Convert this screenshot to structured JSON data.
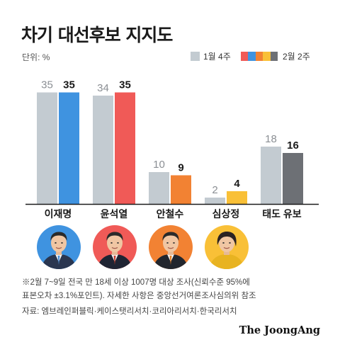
{
  "title": "차기 대선후보 지지도",
  "unit": "단위: %",
  "legend": {
    "w1_label": "1월 4주",
    "w2_label": "2월 2주"
  },
  "colors": {
    "previous_gray": "#c3cbd1",
    "lee": "#3f93e0",
    "yoon": "#f05a57",
    "ahn": "#f28233",
    "sim": "#f9c037",
    "undecided": "#6d7075",
    "label_prev": "#8b8f94",
    "label_curr": "#1a1a1a",
    "baseline": "#1a1a1a"
  },
  "chart_data": {
    "type": "bar",
    "title": "차기 대선후보 지지도",
    "unit": "%",
    "categories": [
      "이재명",
      "윤석열",
      "안철수",
      "심상정",
      "태도 유보"
    ],
    "series": [
      {
        "name": "1월 4주",
        "values": [
          35,
          34,
          10,
          2,
          18
        ]
      },
      {
        "name": "2월 2주",
        "values": [
          35,
          35,
          9,
          4,
          16
        ]
      }
    ],
    "ylim": [
      0,
      40
    ],
    "grid": false,
    "legend_position": "top-right"
  },
  "photos": [
    {
      "name": "이재명",
      "icon": "candidate-lee-photo",
      "bg": "#3f93e0",
      "suit": "#2a3650",
      "tie": "#4b8ed6"
    },
    {
      "name": "윤석열",
      "icon": "candidate-yoon-photo",
      "bg": "#f05a57",
      "suit": "#1f2433",
      "tie": "#c0392b"
    },
    {
      "name": "안철수",
      "icon": "candidate-ahn-photo",
      "bg": "#f28233",
      "suit": "#22262e",
      "tie": "#e67e22"
    },
    {
      "name": "심상정",
      "icon": "candidate-sim-photo",
      "bg": "#f9c037",
      "suit": "#e8b321",
      "tie": "#ffffff"
    }
  ],
  "note_line1": "※2월 7~9일 전국 만 18세 이상 1007명 대상 조사(신뢰수준 95%에",
  "note_line2": "표본오차 ±3.1%포인트). 자세한 사항은 중앙선거여론조사심의위 참조",
  "source": "자료: 엠브레인퍼블릭·케이스탯리서치·코리아리서치·한국리서치",
  "brand": "The JoongAng"
}
